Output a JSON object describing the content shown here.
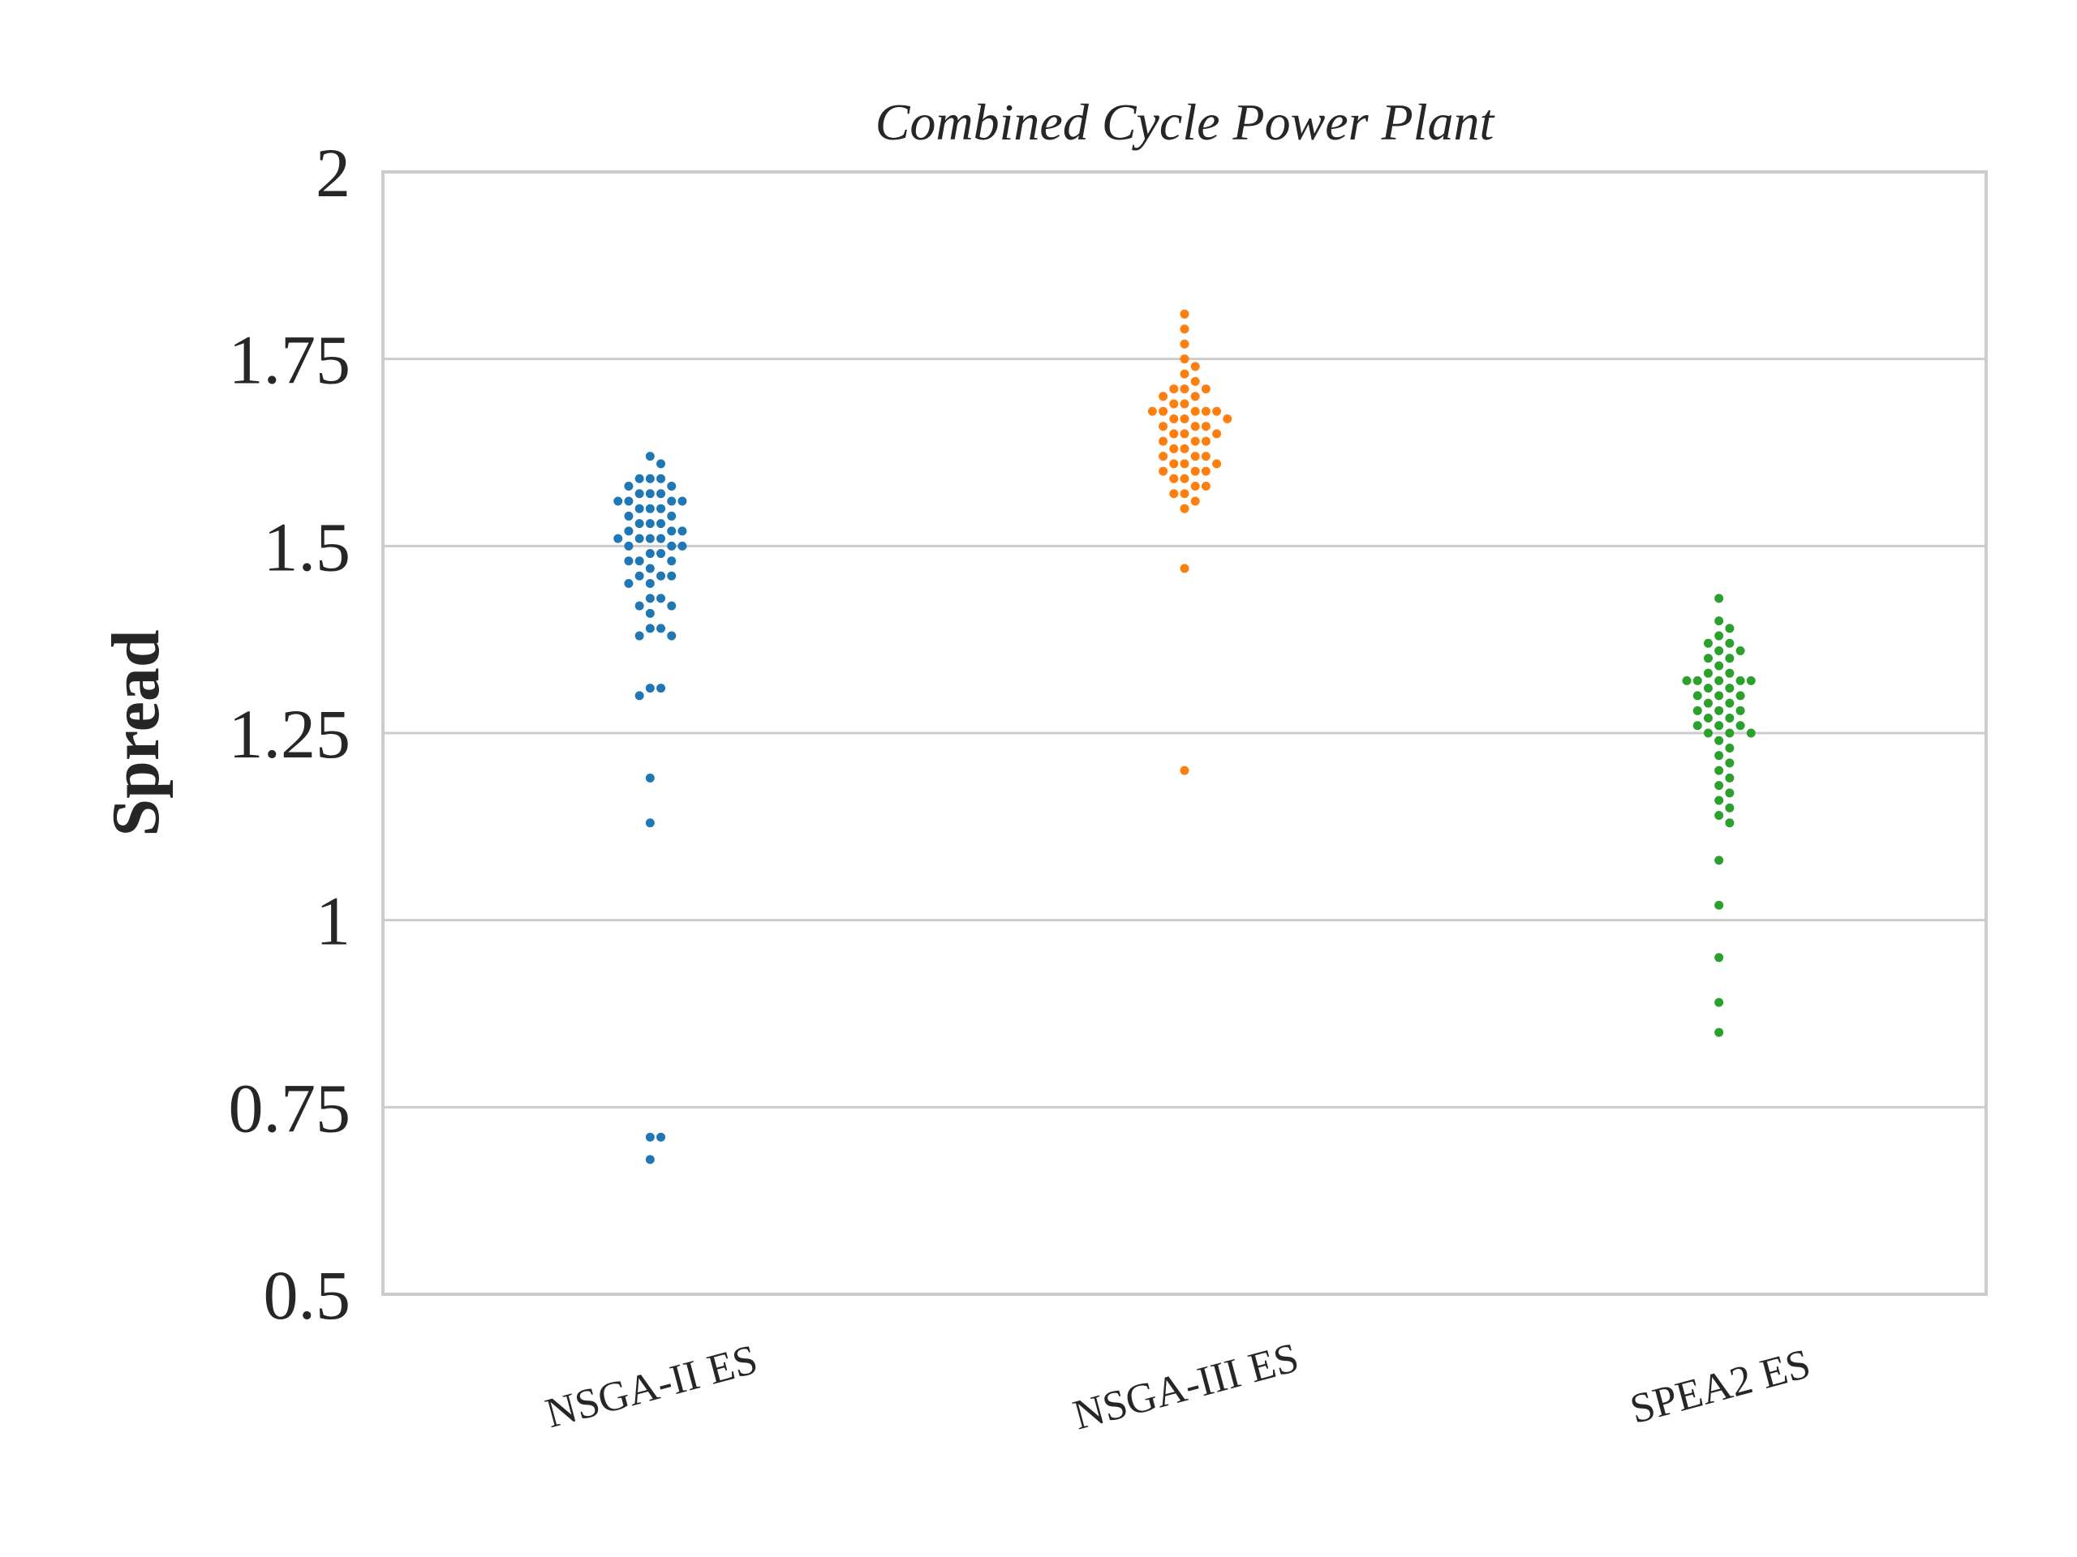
{
  "chart_data": {
    "type": "scatter",
    "subtype": "swarm",
    "title": "Combined Cycle Power Plant",
    "xlabel": "",
    "ylabel": "Spread",
    "categories": [
      "NSGA-II ES",
      "NSGA-III ES",
      "SPEA2 ES"
    ],
    "ylim": [
      0.5,
      2
    ],
    "yticks": [
      0.5,
      0.75,
      1,
      1.25,
      1.5,
      1.75,
      2
    ],
    "ytick_labels": [
      "0.5",
      "0.75",
      "1",
      "1.25",
      "1.5",
      "1.75",
      "2"
    ],
    "grid": "horizontal",
    "colors": [
      "#1f77b4",
      "#ff7f0e",
      "#2ca02c"
    ],
    "series": [
      {
        "category": "NSGA-II ES",
        "values": [
          1.62,
          1.61,
          1.59,
          1.59,
          1.59,
          1.58,
          1.58,
          1.57,
          1.57,
          1.57,
          1.56,
          1.56,
          1.56,
          1.56,
          1.55,
          1.55,
          1.55,
          1.54,
          1.54,
          1.53,
          1.53,
          1.53,
          1.52,
          1.52,
          1.52,
          1.51,
          1.51,
          1.51,
          1.51,
          1.5,
          1.5,
          1.5,
          1.49,
          1.49,
          1.48,
          1.48,
          1.48,
          1.47,
          1.46,
          1.46,
          1.46,
          1.45,
          1.45,
          1.43,
          1.43,
          1.42,
          1.42,
          1.41,
          1.39,
          1.39,
          1.38,
          1.38,
          1.31,
          1.31,
          1.3,
          1.19,
          1.13,
          0.71,
          0.71,
          0.68
        ]
      },
      {
        "category": "NSGA-III ES",
        "values": [
          1.81,
          1.79,
          1.77,
          1.75,
          1.74,
          1.73,
          1.72,
          1.71,
          1.71,
          1.71,
          1.7,
          1.7,
          1.69,
          1.69,
          1.68,
          1.68,
          1.68,
          1.68,
          1.68,
          1.67,
          1.67,
          1.67,
          1.66,
          1.66,
          1.66,
          1.65,
          1.65,
          1.65,
          1.64,
          1.64,
          1.64,
          1.63,
          1.63,
          1.62,
          1.62,
          1.62,
          1.61,
          1.61,
          1.61,
          1.6,
          1.6,
          1.6,
          1.59,
          1.59,
          1.58,
          1.58,
          1.57,
          1.57,
          1.56,
          1.55,
          1.47,
          1.2
        ]
      },
      {
        "category": "SPEA2 ES",
        "values": [
          1.43,
          1.4,
          1.39,
          1.38,
          1.37,
          1.37,
          1.36,
          1.36,
          1.35,
          1.35,
          1.34,
          1.33,
          1.33,
          1.32,
          1.32,
          1.32,
          1.32,
          1.32,
          1.31,
          1.31,
          1.3,
          1.3,
          1.3,
          1.29,
          1.29,
          1.28,
          1.28,
          1.28,
          1.27,
          1.27,
          1.26,
          1.26,
          1.26,
          1.25,
          1.25,
          1.25,
          1.24,
          1.23,
          1.22,
          1.21,
          1.2,
          1.19,
          1.18,
          1.17,
          1.16,
          1.15,
          1.14,
          1.13,
          1.08,
          1.02,
          0.95,
          0.89,
          0.85
        ]
      }
    ]
  }
}
